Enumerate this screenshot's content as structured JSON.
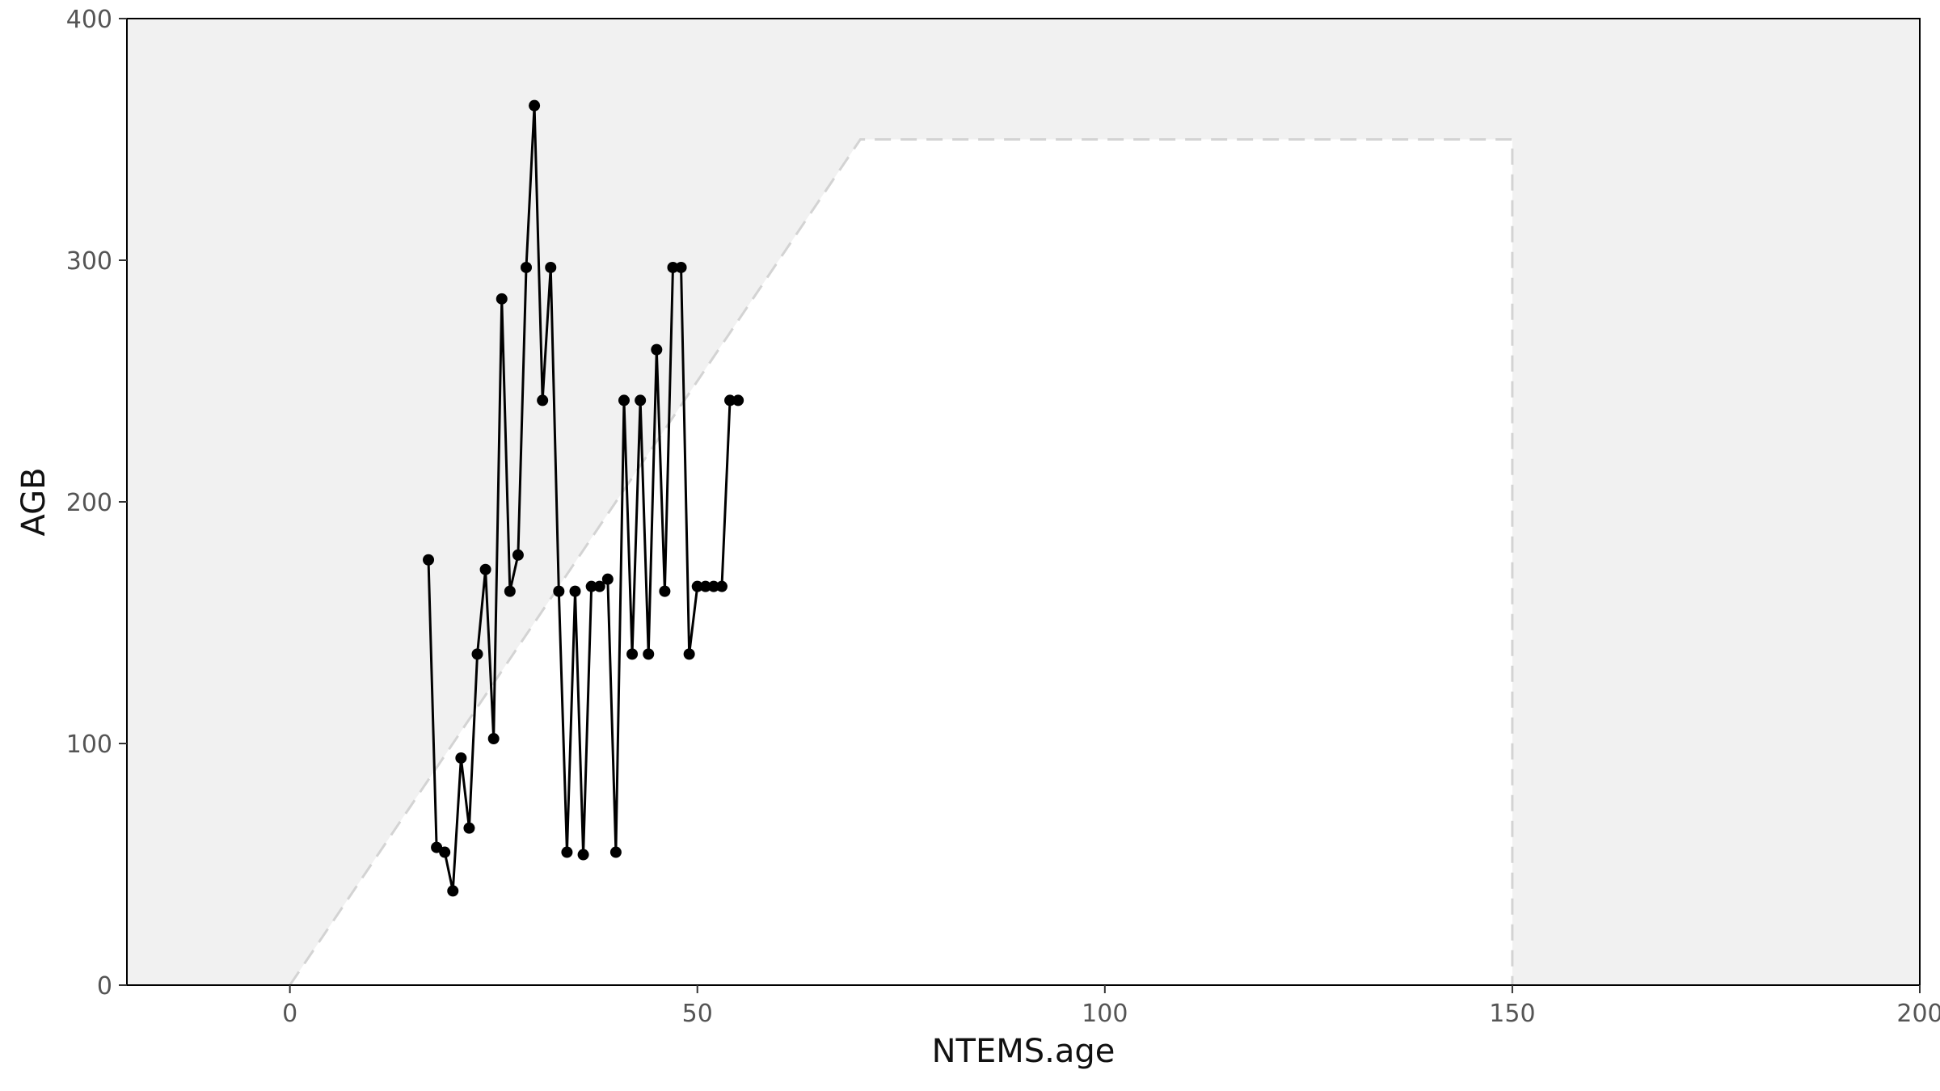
{
  "chart_data": {
    "type": "line",
    "title": "",
    "xlabel": "NTEMS.age",
    "ylabel": "AGB",
    "xlim": [
      -20,
      200
    ],
    "ylim": [
      0,
      400
    ],
    "x_ticks": [
      0,
      50,
      100,
      150,
      200
    ],
    "y_ticks": [
      0,
      100,
      200,
      300,
      400
    ],
    "x_tick_labels": [
      "0",
      "50",
      "100",
      "150",
      "200"
    ],
    "y_tick_labels": [
      "0",
      "100",
      "200",
      "300",
      "400"
    ],
    "grid": false,
    "background_color": "#f1f1f1",
    "line_color": "#000000",
    "boundary_color": "#d3d3d3",
    "boundary_polygon": {
      "x": [
        0,
        70,
        150,
        150
      ],
      "y": [
        0,
        350,
        350,
        0
      ]
    },
    "series": [
      {
        "x": [
          17,
          18,
          19,
          20,
          21,
          22,
          23,
          24,
          25,
          26,
          27,
          28,
          29,
          30,
          31,
          32,
          33,
          34,
          35,
          36,
          37,
          38,
          39,
          40,
          41,
          42,
          43,
          44,
          45,
          46,
          47,
          48,
          49,
          50,
          51,
          52,
          53,
          54,
          55
        ],
        "values": [
          176,
          57,
          55,
          39,
          94,
          65,
          137,
          172,
          102,
          284,
          163,
          178,
          297,
          364,
          242,
          297,
          163,
          55,
          163,
          54,
          165,
          165,
          168,
          55,
          242,
          137,
          242,
          137,
          263,
          163,
          297,
          297,
          137,
          165,
          165,
          165,
          165,
          242,
          242
        ]
      }
    ]
  }
}
